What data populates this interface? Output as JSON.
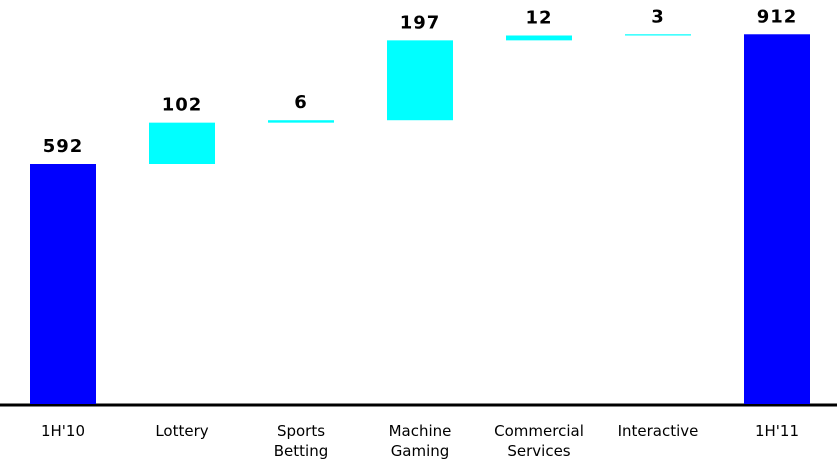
{
  "chart_data": {
    "type": "waterfall",
    "categories": [
      "1H'10",
      "Lottery",
      "Sports Betting",
      "Machine Gaming",
      "Commercial Services",
      "Interactive",
      "1H'11"
    ],
    "values": [
      592,
      102,
      6,
      197,
      12,
      3,
      912
    ],
    "total_color": "#0000ff",
    "color": "#00ffff"
  }
}
